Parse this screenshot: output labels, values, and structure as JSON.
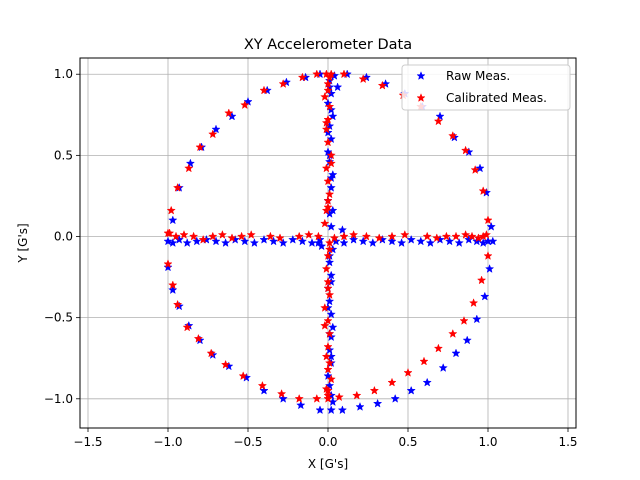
{
  "chart_data": {
    "type": "scatter",
    "title": "XY Accelerometer Data",
    "xlabel": "X [G's]",
    "ylabel": "Y [G's]",
    "xlim": [
      -1.55,
      1.55
    ],
    "ylim": [
      -1.18,
      1.1
    ],
    "xticks": [
      -1.5,
      -1.0,
      -0.5,
      0.0,
      0.5,
      1.0,
      1.5
    ],
    "yticks": [
      -1.0,
      -0.5,
      0.0,
      0.5,
      1.0
    ],
    "xtick_labels": [
      "−1.5",
      "−1.0",
      "−0.5",
      "0.0",
      "0.5",
      "1.0",
      "1.5"
    ],
    "ytick_labels": [
      "−1.0",
      "−0.5",
      "0.0",
      "0.5",
      "1.0"
    ],
    "grid": true,
    "legend_position": "top-right",
    "marker": "star",
    "series": [
      {
        "name": "Raw Meas.",
        "color": "#0000ff",
        "x": [
          1.02,
          0.99,
          0.95,
          0.88,
          0.79,
          0.7,
          0.59,
          0.48,
          0.36,
          0.24,
          0.12,
          0.04,
          -0.05,
          -0.14,
          -0.26,
          -0.38,
          -0.5,
          -0.6,
          -0.7,
          -0.79,
          -0.86,
          -0.93,
          -0.97,
          -1.0,
          -1.0,
          -0.97,
          -0.93,
          -0.87,
          -0.8,
          -0.72,
          -0.62,
          -0.51,
          -0.4,
          -0.28,
          -0.17,
          -0.05,
          0.02,
          0.09,
          0.2,
          0.31,
          0.42,
          0.52,
          0.62,
          0.72,
          0.8,
          0.87,
          0.93,
          0.98,
          1.01,
          -0.97,
          -0.93,
          -0.88,
          -0.82,
          -0.76,
          -0.7,
          -0.64,
          -0.58,
          -0.52,
          -0.46,
          -0.4,
          -0.34,
          -0.28,
          -0.22,
          -0.16,
          -0.1,
          -0.05,
          0.05,
          0.1,
          0.16,
          0.22,
          0.28,
          0.34,
          0.4,
          0.46,
          0.52,
          0.58,
          0.64,
          0.7,
          0.76,
          0.82,
          0.88,
          0.93,
          0.97,
          1.0,
          1.03,
          0.01,
          0.02,
          0.0,
          0.03,
          0.01,
          0.02,
          0.0,
          0.01,
          0.03,
          0.02,
          0.0,
          0.01,
          0.02,
          0.03,
          0.01,
          0.02,
          0.0,
          0.01,
          0.02,
          0.03,
          0.02,
          0.01,
          0.02,
          0.0,
          0.01,
          0.02,
          0.03,
          0.01,
          0.02,
          0.0,
          0.01,
          0.02,
          0.03,
          0.01,
          0.02,
          0.0,
          0.01,
          0.02,
          -0.06,
          0.06,
          0.09,
          -0.04
        ],
        "y": [
          0.06,
          0.27,
          0.42,
          0.52,
          0.61,
          0.74,
          0.8,
          0.88,
          0.94,
          0.98,
          1.0,
          0.99,
          1.0,
          0.98,
          0.95,
          0.9,
          0.83,
          0.74,
          0.66,
          0.55,
          0.45,
          0.3,
          0.1,
          -0.03,
          -0.19,
          -0.33,
          -0.43,
          -0.55,
          -0.64,
          -0.73,
          -0.8,
          -0.87,
          -0.95,
          -1.0,
          -1.04,
          -1.07,
          -1.07,
          -1.07,
          -1.05,
          -1.03,
          -1.0,
          -0.95,
          -0.9,
          -0.81,
          -0.72,
          -0.64,
          -0.51,
          -0.37,
          -0.2,
          -0.04,
          -0.02,
          -0.04,
          -0.03,
          -0.02,
          -0.03,
          -0.04,
          -0.02,
          -0.03,
          -0.04,
          -0.02,
          -0.03,
          -0.04,
          -0.02,
          -0.03,
          -0.04,
          -0.02,
          -0.03,
          -0.04,
          -0.02,
          -0.03,
          -0.04,
          -0.02,
          -0.03,
          -0.04,
          -0.02,
          -0.03,
          -0.04,
          -0.02,
          -0.03,
          -0.04,
          -0.02,
          -0.03,
          -0.04,
          -0.03,
          -0.03,
          0.96,
          0.88,
          0.82,
          0.74,
          0.68,
          0.6,
          0.52,
          0.46,
          0.38,
          0.3,
          0.22,
          0.14,
          0.06,
          -0.08,
          -0.16,
          -0.24,
          -0.32,
          -0.4,
          -0.48,
          -0.56,
          -0.62,
          -0.7,
          -0.78,
          -0.86,
          -0.92,
          -0.98,
          -1.02,
          0.92,
          0.78,
          0.64,
          0.5,
          0.36,
          0.16,
          -0.12,
          -0.28,
          -0.44,
          -0.6,
          -0.74,
          -0.04,
          0.92,
          0.04,
          -0.06
        ]
      },
      {
        "name": "Calibrated Meas.",
        "color": "#ff0000",
        "x": [
          1.0,
          0.97,
          0.92,
          0.86,
          0.78,
          0.69,
          0.58,
          0.47,
          0.34,
          0.22,
          0.1,
          0.02,
          -0.07,
          -0.16,
          -0.28,
          -0.4,
          -0.52,
          -0.62,
          -0.72,
          -0.8,
          -0.87,
          -0.94,
          -0.98,
          -1.0,
          -1.0,
          -0.97,
          -0.94,
          -0.88,
          -0.81,
          -0.73,
          -0.64,
          -0.53,
          -0.41,
          -0.29,
          -0.18,
          -0.07,
          0.0,
          0.07,
          0.18,
          0.29,
          0.4,
          0.5,
          0.6,
          0.69,
          0.78,
          0.85,
          0.91,
          0.96,
          1.0,
          -0.99,
          -0.95,
          -0.9,
          -0.84,
          -0.78,
          -0.72,
          -0.66,
          -0.6,
          -0.54,
          -0.48,
          -0.36,
          -0.3,
          -0.18,
          -0.12,
          -0.06,
          0.04,
          0.1,
          0.16,
          0.24,
          0.32,
          0.4,
          0.48,
          0.62,
          0.68,
          0.74,
          0.8,
          0.86,
          0.9,
          0.94,
          0.97,
          0.99,
          -0.01,
          0.0,
          -0.02,
          0.01,
          0.0,
          -0.01,
          0.0,
          0.02,
          -0.01,
          0.0,
          0.01,
          0.0,
          -0.02,
          0.01,
          0.0,
          -0.01,
          0.0,
          0.01,
          -0.02,
          0.0,
          0.01,
          0.0,
          -0.01,
          0.0,
          0.02,
          -0.01,
          0.0,
          0.01,
          0.0,
          -0.01,
          0.02,
          0.0,
          -0.01,
          0.01,
          0.0,
          -0.02,
          0.01,
          0.0
        ],
        "y": [
          0.1,
          0.28,
          0.41,
          0.53,
          0.62,
          0.71,
          0.8,
          0.87,
          0.93,
          0.97,
          1.0,
          1.0,
          1.0,
          0.98,
          0.94,
          0.9,
          0.81,
          0.76,
          0.63,
          0.55,
          0.42,
          0.3,
          0.16,
          0.02,
          -0.17,
          -0.3,
          -0.42,
          -0.56,
          -0.63,
          -0.72,
          -0.79,
          -0.86,
          -0.92,
          -0.97,
          -1.0,
          -1.0,
          -1.0,
          -0.99,
          -0.98,
          -0.95,
          -0.9,
          -0.84,
          -0.77,
          -0.69,
          -0.6,
          -0.52,
          -0.41,
          -0.27,
          -0.12,
          0.02,
          0.0,
          0.01,
          0.0,
          -0.02,
          0.0,
          0.01,
          -0.01,
          0.0,
          0.01,
          0.0,
          -0.01,
          0.0,
          0.01,
          0.0,
          -0.01,
          0.0,
          0.01,
          0.0,
          -0.01,
          0.0,
          0.01,
          0.0,
          -0.01,
          0.0,
          0.0,
          0.01,
          0.0,
          -0.01,
          0.0,
          0.01,
          1.0,
          0.94,
          0.86,
          0.8,
          0.72,
          0.66,
          0.58,
          0.5,
          0.42,
          0.34,
          0.26,
          0.18,
          0.08,
          -0.04,
          -0.12,
          -0.2,
          -0.28,
          -0.36,
          -0.44,
          -0.52,
          -0.6,
          -0.68,
          -0.74,
          -0.82,
          -0.88,
          -0.94,
          -0.98,
          0.98,
          0.9,
          0.7,
          0.45,
          0.22,
          0.16,
          -0.08,
          -0.32,
          -0.55,
          -0.78,
          -0.95
        ]
      }
    ]
  }
}
